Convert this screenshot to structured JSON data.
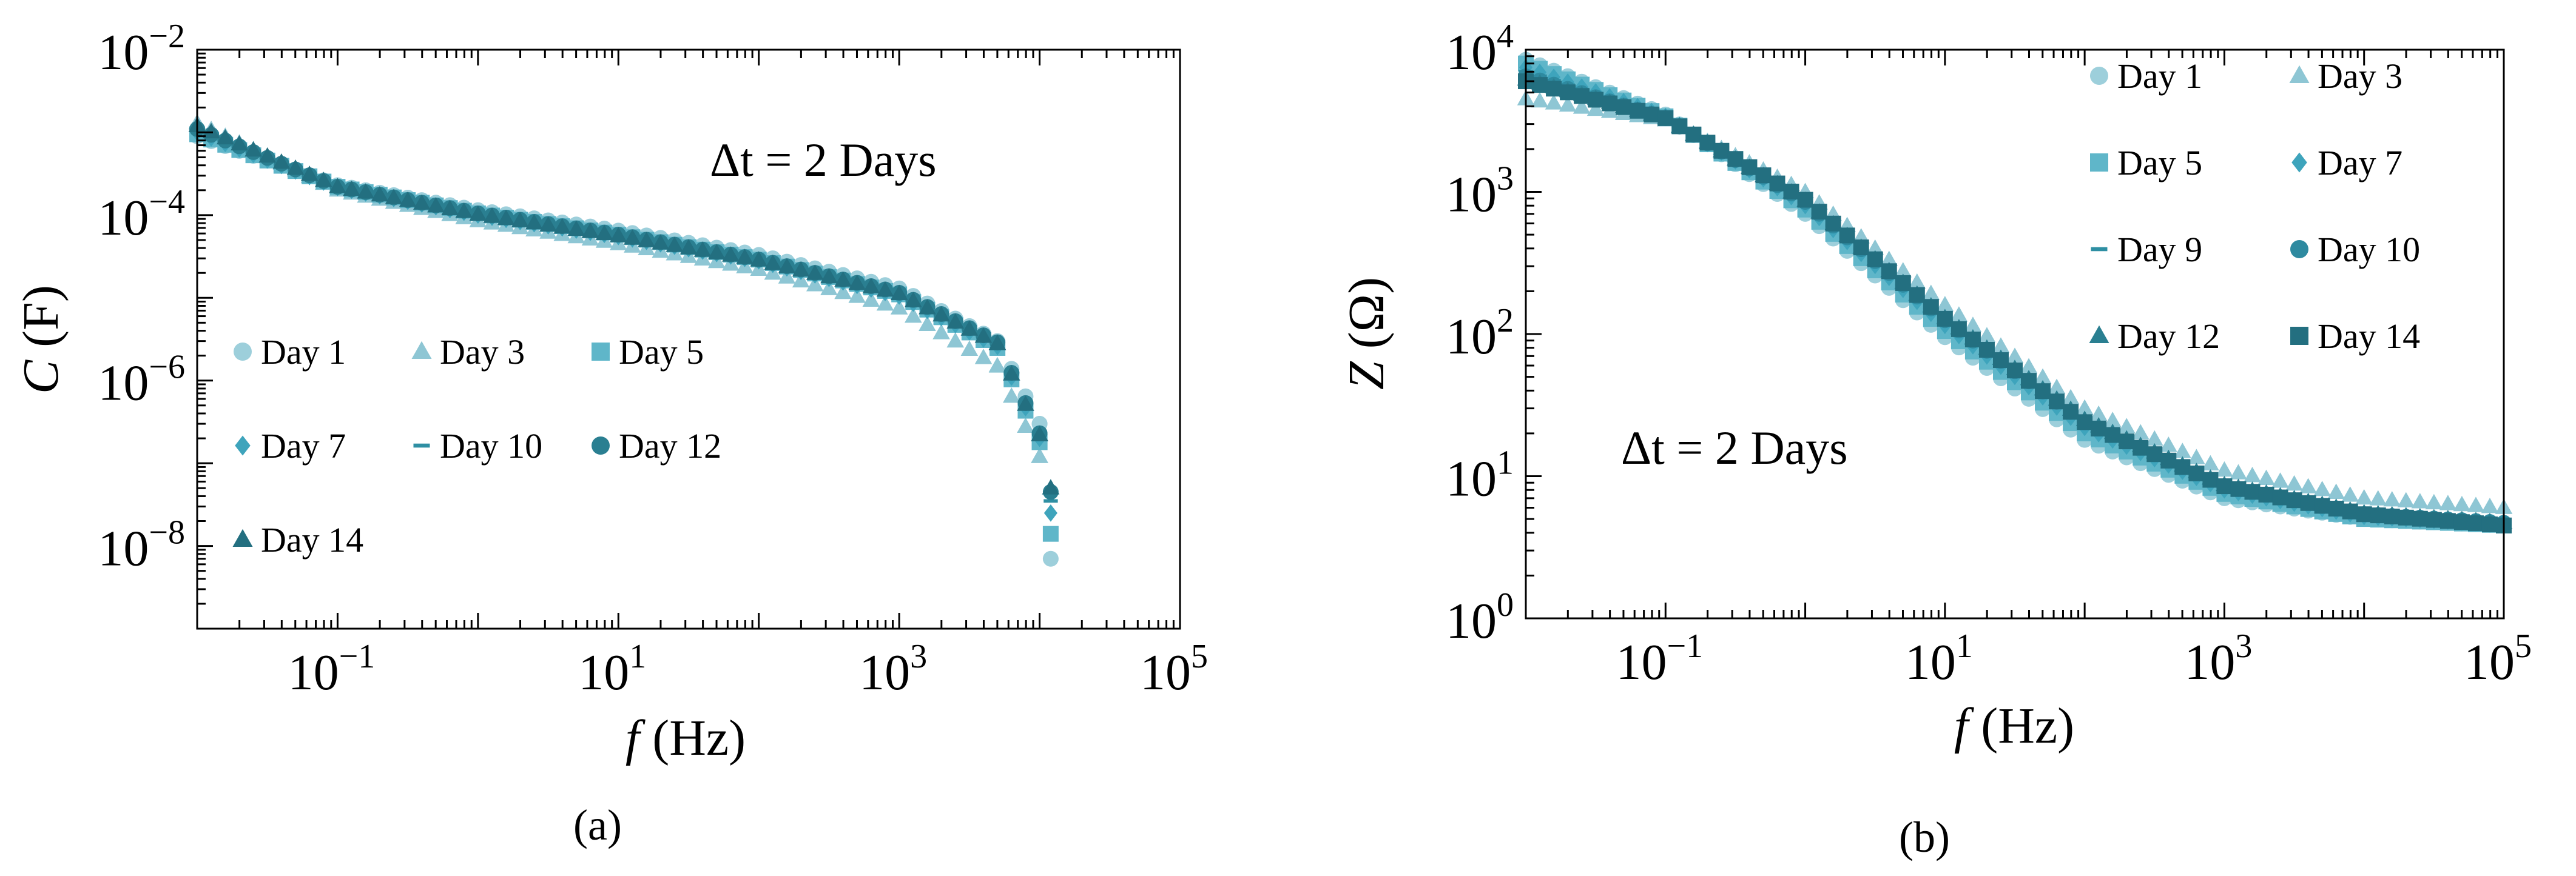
{
  "chart_data": [
    {
      "panel": "(a)",
      "type": "scatter",
      "xscale": "log",
      "yscale": "log",
      "xlabel": {
        "var": "f",
        "unit": " (Hz)"
      },
      "ylabel": {
        "var": "C",
        "unit": " (F)"
      },
      "xlim": [
        0.01,
        100000
      ],
      "ylim": [
        1e-09,
        0.01
      ],
      "xticks": [
        {
          "base": "10",
          "exp": "−1"
        },
        {
          "base": "10",
          "exp": "1"
        },
        {
          "base": "10",
          "exp": "3"
        },
        {
          "base": "10",
          "exp": "5"
        }
      ],
      "yticks": [
        {
          "base": "10",
          "exp": "−2"
        },
        {
          "base": "10",
          "exp": "−4"
        },
        {
          "base": "10",
          "exp": "−6"
        },
        {
          "base": "10",
          "exp": "−8"
        }
      ],
      "annotation": "Δt = 2 Days",
      "legend_position": "lower-left",
      "x_range_data": [
        0.01,
        12000
      ],
      "series": [
        {
          "name": "Day 1",
          "marker": "circle",
          "color": "#9dcfdb",
          "anchors": [
            [
              0.01,
              0.0009
            ],
            [
              0.1,
              0.00023
            ],
            [
              1,
              0.000115
            ],
            [
              10,
              6.5e-05
            ],
            [
              100,
              3.3e-05
            ],
            [
              1000,
              1.3e-05
            ],
            [
              5000,
              3e-06
            ],
            [
              10000,
              3e-07
            ],
            [
              12000,
              7e-09
            ]
          ]
        },
        {
          "name": "Day 3",
          "marker": "triangle",
          "color": "#8ec6d4",
          "anchors": [
            [
              0.01,
              0.0013
            ],
            [
              0.1,
              0.0002
            ],
            [
              1,
              8.5e-05
            ],
            [
              10,
              4.5e-05
            ],
            [
              100,
              2.2e-05
            ],
            [
              1000,
              7.5e-06
            ],
            [
              5000,
              1.5e-06
            ],
            [
              10000,
              1.2e-07
            ],
            [
              12000,
              5e-08
            ]
          ]
        },
        {
          "name": "Day 5",
          "marker": "square",
          "color": "#5fb6c9",
          "anchors": [
            [
              0.01,
              0.00095
            ],
            [
              0.1,
              0.00022
            ],
            [
              1,
              0.000105
            ],
            [
              10,
              5.8e-05
            ],
            [
              100,
              2.9e-05
            ],
            [
              1000,
              1.1e-05
            ],
            [
              5000,
              2.5e-06
            ],
            [
              10000,
              1.8e-07
            ],
            [
              12000,
              1.4e-08
            ]
          ]
        },
        {
          "name": "Day 7",
          "marker": "diamond",
          "color": "#3ea4bc",
          "anchors": [
            [
              0.01,
              0.001
            ],
            [
              0.1,
              0.000215
            ],
            [
              1,
              0.0001
            ],
            [
              10,
              5.5e-05
            ],
            [
              100,
              2.8e-05
            ],
            [
              1000,
              1.05e-05
            ],
            [
              5000,
              2.6e-06
            ],
            [
              10000,
              2e-07
            ],
            [
              12000,
              2.5e-08
            ]
          ]
        },
        {
          "name": "Day 10",
          "marker": "dash",
          "color": "#2e8fa3",
          "anchors": [
            [
              0.01,
              0.00105
            ],
            [
              0.1,
              0.00021
            ],
            [
              1,
              0.0001
            ],
            [
              10,
              5.5e-05
            ],
            [
              100,
              2.8e-05
            ],
            [
              1000,
              1.1e-05
            ],
            [
              5000,
              2.7e-06
            ],
            [
              10000,
              2.2e-07
            ],
            [
              12000,
              3.5e-08
            ]
          ]
        },
        {
          "name": "Day 12",
          "marker": "circle",
          "color": "#2a7f91",
          "anchors": [
            [
              0.01,
              0.0011
            ],
            [
              0.1,
              0.00022
            ],
            [
              1,
              0.000105
            ],
            [
              10,
              5.8e-05
            ],
            [
              100,
              2.9e-05
            ],
            [
              1000,
              1.15e-05
            ],
            [
              5000,
              2.9e-06
            ],
            [
              10000,
              2.3e-07
            ],
            [
              12000,
              4.5e-08
            ]
          ]
        },
        {
          "name": "Day 14",
          "marker": "triangle",
          "color": "#236f80",
          "anchors": [
            [
              0.01,
              0.0012
            ],
            [
              0.1,
              0.00022
            ],
            [
              1,
              0.000102
            ],
            [
              10,
              5.6e-05
            ],
            [
              100,
              2.85e-05
            ],
            [
              1000,
              1.12e-05
            ],
            [
              5000,
              2.8e-06
            ],
            [
              10000,
              2.2e-07
            ],
            [
              12000,
              5e-08
            ]
          ]
        }
      ]
    },
    {
      "panel": "(b)",
      "type": "scatter",
      "xscale": "log",
      "yscale": "log",
      "xlabel": {
        "var": "f",
        "unit": " (Hz)"
      },
      "ylabel": {
        "var": "Z",
        "unit": " (Ω)"
      },
      "xlim": [
        0.01,
        100000
      ],
      "ylim": [
        1,
        10000
      ],
      "xticks": [
        {
          "base": "10",
          "exp": "−1"
        },
        {
          "base": "10",
          "exp": "1"
        },
        {
          "base": "10",
          "exp": "3"
        },
        {
          "base": "10",
          "exp": "5"
        }
      ],
      "yticks": [
        {
          "base": "10",
          "exp": "4"
        },
        {
          "base": "10",
          "exp": "3"
        },
        {
          "base": "10",
          "exp": "2"
        },
        {
          "base": "10",
          "exp": "1"
        },
        {
          "base": "10",
          "exp": "0"
        }
      ],
      "annotation": "Δt = 2 Days",
      "legend_position": "top-right",
      "x_range_data": [
        0.01,
        100000
      ],
      "series": [
        {
          "name": "Day 1",
          "marker": "circle",
          "color": "#9dcfdb",
          "anchors": [
            [
              0.01,
              8500
            ],
            [
              0.1,
              3500
            ],
            [
              1,
              700
            ],
            [
              10,
              95
            ],
            [
              100,
              18
            ],
            [
              1000,
              7
            ],
            [
              10000,
              5
            ],
            [
              100000,
              4.5
            ]
          ]
        },
        {
          "name": "Day 3",
          "marker": "triangle",
          "color": "#8ec6d4",
          "anchors": [
            [
              0.01,
              4500
            ],
            [
              0.1,
              3200
            ],
            [
              1,
              1000
            ],
            [
              10,
              160
            ],
            [
              100,
              30
            ],
            [
              1000,
              11
            ],
            [
              10000,
              7
            ],
            [
              100000,
              6
            ]
          ]
        },
        {
          "name": "Day 5",
          "marker": "square",
          "color": "#5fb6c9",
          "anchors": [
            [
              0.01,
              8000
            ],
            [
              0.1,
              3400
            ],
            [
              1,
              750
            ],
            [
              10,
              105
            ],
            [
              100,
              20
            ],
            [
              1000,
              7.5
            ],
            [
              10000,
              5
            ],
            [
              100000,
              4.5
            ]
          ]
        },
        {
          "name": "Day 7",
          "marker": "diamond",
          "color": "#3ea4bc",
          "anchors": [
            [
              0.01,
              7500
            ],
            [
              0.1,
              3400
            ],
            [
              1,
              800
            ],
            [
              10,
              115
            ],
            [
              100,
              22
            ],
            [
              1000,
              8
            ],
            [
              10000,
              5.2
            ],
            [
              100000,
              4.6
            ]
          ]
        },
        {
          "name": "Day 9",
          "marker": "dash",
          "color": "#2e8fa3",
          "anchors": [
            [
              0.01,
              7000
            ],
            [
              0.1,
              3400
            ],
            [
              1,
              820
            ],
            [
              10,
              118
            ],
            [
              100,
              23
            ],
            [
              1000,
              8.2
            ],
            [
              10000,
              5.3
            ],
            [
              100000,
              4.6
            ]
          ]
        },
        {
          "name": "Day 10",
          "marker": "circle",
          "color": "#2e8aa0",
          "anchors": [
            [
              0.01,
              6500
            ],
            [
              0.1,
              3300
            ],
            [
              1,
              850
            ],
            [
              10,
              125
            ],
            [
              100,
              24
            ],
            [
              1000,
              8.5
            ],
            [
              10000,
              5.4
            ],
            [
              100000,
              4.7
            ]
          ]
        },
        {
          "name": "Day 12",
          "marker": "triangle",
          "color": "#2a7f91",
          "anchors": [
            [
              0.01,
              6200
            ],
            [
              0.1,
              3300
            ],
            [
              1,
              870
            ],
            [
              10,
              130
            ],
            [
              100,
              25
            ],
            [
              1000,
              8.7
            ],
            [
              10000,
              5.5
            ],
            [
              100000,
              4.7
            ]
          ]
        },
        {
          "name": "Day 14",
          "marker": "square",
          "color": "#236f80",
          "anchors": [
            [
              0.01,
              6000
            ],
            [
              0.1,
              3300
            ],
            [
              1,
              880
            ],
            [
              10,
              128
            ],
            [
              100,
              24
            ],
            [
              1000,
              8.5
            ],
            [
              10000,
              5.4
            ],
            [
              100000,
              4.5
            ]
          ]
        }
      ]
    }
  ]
}
